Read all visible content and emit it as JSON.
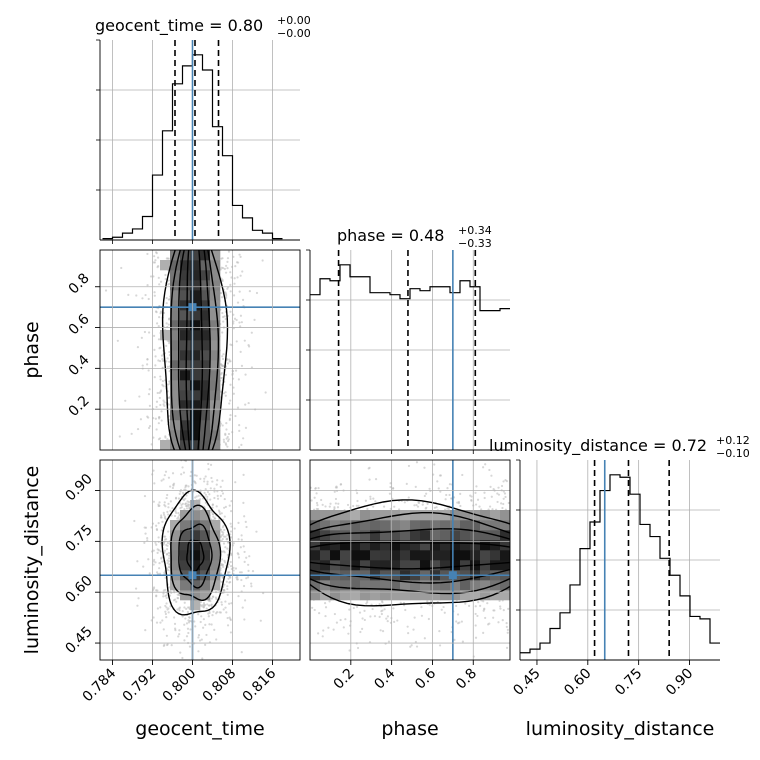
{
  "chart_data": {
    "type": "corner",
    "truth_color": "#4682b4",
    "parameters": [
      "geocent_time",
      "phase",
      "luminosity_distance"
    ],
    "axis_labels": {
      "x": [
        "geocent_time",
        "phase",
        "luminosity_distance"
      ],
      "y": [
        "phase",
        "luminosity_distance"
      ]
    },
    "truths": {
      "geocent_time": 0.8,
      "phase": 0.7,
      "luminosity_distance": 0.65
    },
    "ranges": {
      "geocent_time": [
        0.7815,
        0.8215
      ],
      "phase": [
        0.0,
        0.98
      ],
      "luminosity_distance": [
        0.4,
        0.99
      ]
    },
    "ticks": {
      "geocent_time": {
        "values": [
          0.784,
          0.792,
          0.8,
          0.808,
          0.816
        ],
        "labels": [
          "0.784",
          "0.792",
          "0.800",
          "0.808",
          "0.816"
        ]
      },
      "phase": {
        "values": [
          0.2,
          0.4,
          0.6,
          0.8
        ],
        "labels": [
          "0.2",
          "0.4",
          "0.6",
          "0.8"
        ]
      },
      "luminosity_distance": {
        "values": [
          0.45,
          0.6,
          0.75,
          0.9
        ],
        "labels": [
          "0.45",
          "0.60",
          "0.75",
          "0.90"
        ]
      }
    },
    "titles": [
      {
        "param": "geocent_time",
        "text": "geocent_time = 0.80",
        "plus": "+0.00",
        "minus": "−0.00"
      },
      {
        "param": "phase",
        "text": "phase = 0.48",
        "plus": "+0.34",
        "minus": "−0.33"
      },
      {
        "param": "luminosity_distance",
        "text": "luminosity_distance = 0.72",
        "plus": "+0.12",
        "minus": "−0.10"
      }
    ],
    "quantiles": {
      "geocent_time": [
        0.7965,
        0.8005,
        0.8052
      ],
      "phase": [
        0.14,
        0.48,
        0.81
      ],
      "luminosity_distance": [
        0.62,
        0.72,
        0.84
      ]
    },
    "marginals": {
      "geocent_time": {
        "edges": [
          0.782,
          0.784,
          0.786,
          0.788,
          0.79,
          0.792,
          0.794,
          0.796,
          0.798,
          0.8,
          0.802,
          0.804,
          0.806,
          0.808,
          0.81,
          0.812,
          0.814,
          0.816,
          0.818
        ],
        "counts": [
          1,
          2,
          5,
          8,
          17,
          47,
          79,
          113,
          126,
          134,
          123,
          82,
          61,
          25,
          16,
          7,
          5,
          1
        ]
      },
      "phase": {
        "edges": [
          0.0,
          0.049,
          0.098,
          0.147,
          0.196,
          0.245,
          0.294,
          0.343,
          0.392,
          0.441,
          0.49,
          0.539,
          0.588,
          0.637,
          0.686,
          0.735,
          0.784,
          0.833,
          0.882,
          0.931,
          0.98
        ],
        "counts": [
          78,
          86,
          85,
          93,
          87,
          87,
          79,
          79,
          78,
          76,
          81,
          80,
          82,
          82,
          79,
          85,
          82,
          70,
          70,
          71
        ]
      },
      "luminosity_distance": {
        "edges": [
          0.4,
          0.4295,
          0.459,
          0.4885,
          0.518,
          0.5475,
          0.577,
          0.6065,
          0.636,
          0.6655,
          0.695,
          0.7245,
          0.754,
          0.7835,
          0.813,
          0.8425,
          0.872,
          0.9015,
          0.931,
          0.9605,
          0.99
        ],
        "counts": [
          6,
          9,
          14,
          26,
          39,
          62,
          92,
          114,
          140,
          153,
          151,
          137,
          112,
          102,
          84,
          70,
          53,
          36,
          34,
          14
        ]
      }
    },
    "joint_2d": [
      {
        "x": "geocent_time",
        "y": "phase",
        "center": [
          0.8003,
          0.5
        ],
        "sigma": [
          0.0035,
          0.35
        ]
      },
      {
        "x": "geocent_time",
        "y": "luminosity_distance",
        "center": [
          0.8005,
          0.71
        ],
        "sigma": [
          0.0033,
          0.09
        ]
      },
      {
        "x": "phase",
        "y": "luminosity_distance",
        "center": [
          0.5,
          0.71
        ],
        "sigma": [
          0.35,
          0.085
        ]
      }
    ],
    "grid": true
  }
}
